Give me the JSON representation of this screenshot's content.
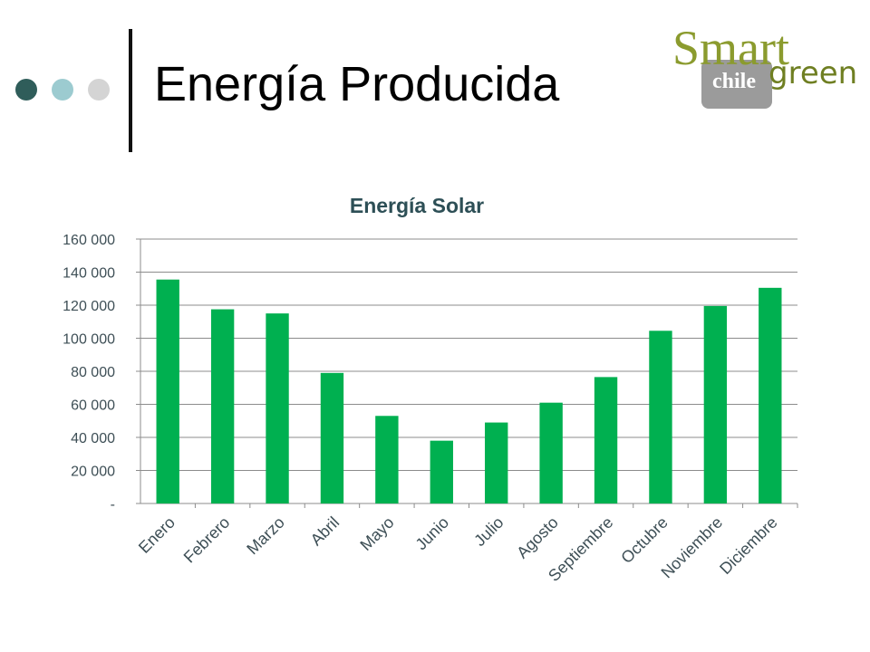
{
  "header": {
    "title": "Energía Producida"
  },
  "logo": {
    "word1": "Smart",
    "word2": "chile",
    "word3": "green"
  },
  "colors": {
    "bar": "#00b050",
    "dot_dark": "#2f5d5a",
    "dot_light": "#9ccbd0",
    "dot_gray": "#d4d4d4",
    "logo_olive": "#8b9b2e",
    "title_text": "#2d4f56"
  },
  "chart_data": {
    "type": "bar",
    "title": "Energía Solar",
    "xlabel": "",
    "ylabel": "",
    "categories": [
      "Enero",
      "Febrero",
      "Marzo",
      "Abril",
      "Mayo",
      "Junio",
      "Julio",
      "Agosto",
      "Septiembre",
      "Octubre",
      "Noviembre",
      "Diciembre"
    ],
    "values": [
      135500,
      117500,
      115000,
      79000,
      53000,
      38000,
      49000,
      61000,
      76500,
      104500,
      119500,
      130500
    ],
    "ylim": [
      0,
      160000
    ],
    "yticks": [
      0,
      20000,
      40000,
      60000,
      80000,
      100000,
      120000,
      140000,
      160000
    ],
    "ytick_labels": [
      "-",
      "20 000",
      "40 000",
      "60 000",
      "80 000",
      "100 000",
      "120 000",
      "140 000",
      "160 000"
    ],
    "grid": true
  }
}
